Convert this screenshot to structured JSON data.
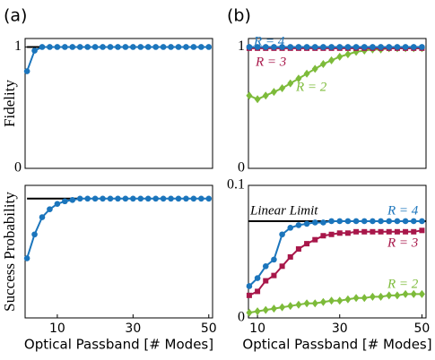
{
  "chart_data": [
    {
      "type": "line",
      "panel_label": "(a)",
      "ylabel": "Fidelity",
      "x": [
        2,
        4,
        6,
        8,
        10,
        12,
        14,
        16,
        18,
        20,
        22,
        24,
        26,
        28,
        30,
        32,
        34,
        36,
        38,
        40,
        42,
        44,
        46,
        48,
        50
      ],
      "xlim": [
        1.5,
        51
      ],
      "ylim": [
        0,
        1.07
      ],
      "yticks": [
        0,
        1
      ],
      "hline": {
        "value": 1,
        "x": [
          2,
          9
        ]
      },
      "series": [
        {
          "color": "#1b75bc",
          "marker": "circle",
          "values": [
            0.8,
            0.97,
            1,
            1,
            1,
            1,
            1,
            1,
            1,
            1,
            1,
            1,
            1,
            1,
            1,
            1,
            1,
            1,
            1,
            1,
            1,
            1,
            1,
            1,
            1
          ]
        }
      ]
    },
    {
      "type": "line",
      "ylabel": "Success Probability",
      "xlabel": "Optical Passband [# Modes]",
      "x": [
        2,
        4,
        6,
        8,
        10,
        12,
        14,
        16,
        18,
        20,
        22,
        24,
        26,
        28,
        30,
        32,
        34,
        36,
        38,
        40,
        42,
        44,
        46,
        48,
        50
      ],
      "xlim": [
        1.5,
        51
      ],
      "ylim": [
        0,
        0.1
      ],
      "xticks": [
        10,
        30,
        50
      ],
      "hline": {
        "value": 0.09,
        "x": [
          2,
          16
        ]
      },
      "series": [
        {
          "color": "#1b75bc",
          "marker": "circle",
          "values": [
            0.045,
            0.063,
            0.076,
            0.082,
            0.086,
            0.088,
            0.089,
            0.09,
            0.09,
            0.09,
            0.09,
            0.09,
            0.09,
            0.09,
            0.09,
            0.09,
            0.09,
            0.09,
            0.09,
            0.09,
            0.09,
            0.09,
            0.09,
            0.09,
            0.09
          ]
        }
      ]
    },
    {
      "type": "line",
      "panel_label": "(b)",
      "x": [
        8,
        10,
        12,
        14,
        16,
        18,
        20,
        22,
        24,
        26,
        28,
        30,
        32,
        34,
        36,
        38,
        40,
        42,
        44,
        46,
        48,
        50
      ],
      "xlim": [
        7.8,
        51
      ],
      "ylim": [
        0,
        1.07
      ],
      "yticks": [
        0,
        1
      ],
      "series": [
        {
          "name": "R = 2",
          "color": "#7dbb3a",
          "marker": "diamond",
          "values": [
            0.6,
            0.57,
            0.6,
            0.63,
            0.66,
            0.7,
            0.74,
            0.78,
            0.82,
            0.86,
            0.89,
            0.92,
            0.94,
            0.96,
            0.97,
            0.98,
            0.98,
            0.99,
            0.99,
            0.99,
            0.99,
            0.99
          ]
        },
        {
          "name": "R = 3",
          "color": "#a8174a",
          "marker": "square",
          "values": [
            0.99,
            0.99,
            0.99,
            0.99,
            0.99,
            0.99,
            0.99,
            0.99,
            0.99,
            0.99,
            0.99,
            0.99,
            0.99,
            0.99,
            0.99,
            0.99,
            0.99,
            0.99,
            0.99,
            0.99,
            0.99,
            0.99
          ]
        },
        {
          "name": "R = 4",
          "color": "#1b75bc",
          "marker": "circle",
          "values": [
            1,
            1,
            1,
            1,
            1,
            1,
            1,
            1,
            1,
            1,
            1,
            1,
            1,
            1,
            1,
            1,
            1,
            1,
            1,
            1,
            1,
            1
          ]
        }
      ]
    },
    {
      "type": "line",
      "xlabel": "Optical Passband [# Modes]",
      "x": [
        8,
        10,
        12,
        14,
        16,
        18,
        20,
        22,
        24,
        26,
        28,
        30,
        32,
        34,
        36,
        38,
        40,
        42,
        44,
        46,
        48,
        50
      ],
      "xlim": [
        7.8,
        51
      ],
      "ylim": [
        0,
        0.1
      ],
      "yticks": [
        0,
        0.1
      ],
      "xticks": [
        10,
        30,
        50
      ],
      "hline": {
        "value": 0.073,
        "x": [
          7.8,
          51
        ],
        "label": "Linear Limit"
      },
      "series": [
        {
          "name": "R = 2",
          "color": "#7dbb3a",
          "marker": "diamond",
          "values": [
            0.004,
            0.005,
            0.006,
            0.007,
            0.008,
            0.009,
            0.01,
            0.011,
            0.011,
            0.012,
            0.013,
            0.013,
            0.014,
            0.015,
            0.015,
            0.016,
            0.016,
            0.017,
            0.017,
            0.018,
            0.018,
            0.018
          ]
        },
        {
          "name": "R = 3",
          "color": "#a8174a",
          "marker": "square",
          "values": [
            0.017,
            0.02,
            0.028,
            0.032,
            0.039,
            0.046,
            0.052,
            0.056,
            0.059,
            0.062,
            0.063,
            0.064,
            0.064,
            0.065,
            0.065,
            0.065,
            0.065,
            0.065,
            0.065,
            0.065,
            0.065,
            0.066
          ]
        },
        {
          "name": "R = 4",
          "color": "#1b75bc",
          "marker": "circle",
          "values": [
            0.024,
            0.03,
            0.039,
            0.044,
            0.063,
            0.068,
            0.07,
            0.071,
            0.072,
            0.072,
            0.073,
            0.073,
            0.073,
            0.073,
            0.073,
            0.073,
            0.073,
            0.073,
            0.073,
            0.073,
            0.073,
            0.073
          ]
        }
      ]
    }
  ]
}
